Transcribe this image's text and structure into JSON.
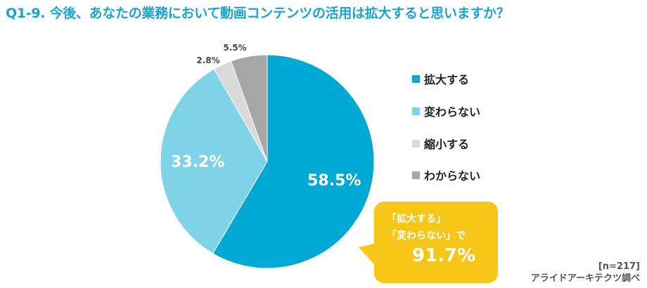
{
  "chart_data": {
    "type": "pie",
    "title": "Q1-9. 今後、あなたの業務において動画コンテンツの活用は拡大すると思いますか？",
    "categories": [
      "拡大する",
      "変わらない",
      "縮小する",
      "わからない"
    ],
    "values": [
      58.5,
      33.2,
      2.8,
      5.5
    ],
    "labels": [
      "58.5%",
      "33.2%",
      "2.8%",
      "5.5%"
    ],
    "colors": [
      "#00a9d3",
      "#7fd3e8",
      "#d9d9d9",
      "#a6a6a6"
    ],
    "legend_position": "right"
  },
  "callout": {
    "line1": "「拡大する」",
    "line2": "「変わらない」で",
    "value": "91.7%"
  },
  "note": {
    "n": "[n=217]",
    "source": "アライドアーキテクツ調べ"
  }
}
